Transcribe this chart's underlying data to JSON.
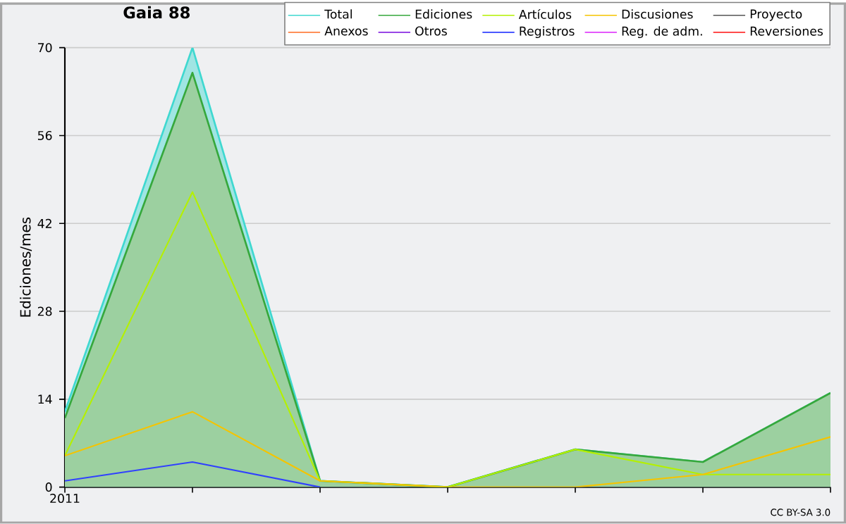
{
  "chart_data": {
    "type": "line",
    "title": "Gaia 88",
    "ylabel": "Ediciones/mes",
    "categories": [
      "2011",
      null,
      null,
      null,
      null,
      null,
      null
    ],
    "series": [
      {
        "name": "Total",
        "type": "area",
        "color": "#3fd8d0",
        "values": [
          12,
          70,
          1,
          0,
          6,
          4,
          15
        ]
      },
      {
        "name": "Ediciones",
        "type": "area",
        "color": "#36a83c",
        "values": [
          11,
          66,
          1,
          0,
          6,
          4,
          15
        ]
      },
      {
        "name": "Artículos",
        "color": "#b4f000",
        "values": [
          5,
          47,
          1,
          0,
          6,
          2,
          2
        ]
      },
      {
        "name": "Discusiones",
        "color": "#f5c400",
        "values": [
          5,
          12,
          1,
          0,
          0,
          2,
          8
        ]
      },
      {
        "name": "Proyecto",
        "color": "#555555",
        "values": [
          null,
          null,
          null,
          null,
          null,
          null,
          null
        ]
      },
      {
        "name": "Anexos",
        "color": "#ff7f40",
        "values": [
          null,
          null,
          null,
          null,
          null,
          null,
          null
        ]
      },
      {
        "name": "Otros",
        "color": "#8a2be2",
        "values": [
          null,
          null,
          null,
          null,
          null,
          null,
          null
        ]
      },
      {
        "name": "Registros",
        "color": "#3040ff",
        "values": [
          1,
          4,
          0,
          null,
          null,
          null,
          null
        ]
      },
      {
        "name": "Reg. de adm.",
        "color": "#e040fb",
        "values": [
          null,
          null,
          null,
          null,
          null,
          null,
          null
        ]
      },
      {
        "name": "Reversiones",
        "color": "#ff3030",
        "values": [
          null,
          null,
          null,
          null,
          null,
          null,
          null
        ]
      }
    ],
    "ylim": [
      0,
      70
    ],
    "yticks": [
      0,
      14,
      28,
      42,
      56,
      70
    ],
    "grid": "y",
    "legend": "top right",
    "marker": "none",
    "line_style": "solid",
    "annotations": [
      "CC BY-SA 3.0"
    ]
  }
}
